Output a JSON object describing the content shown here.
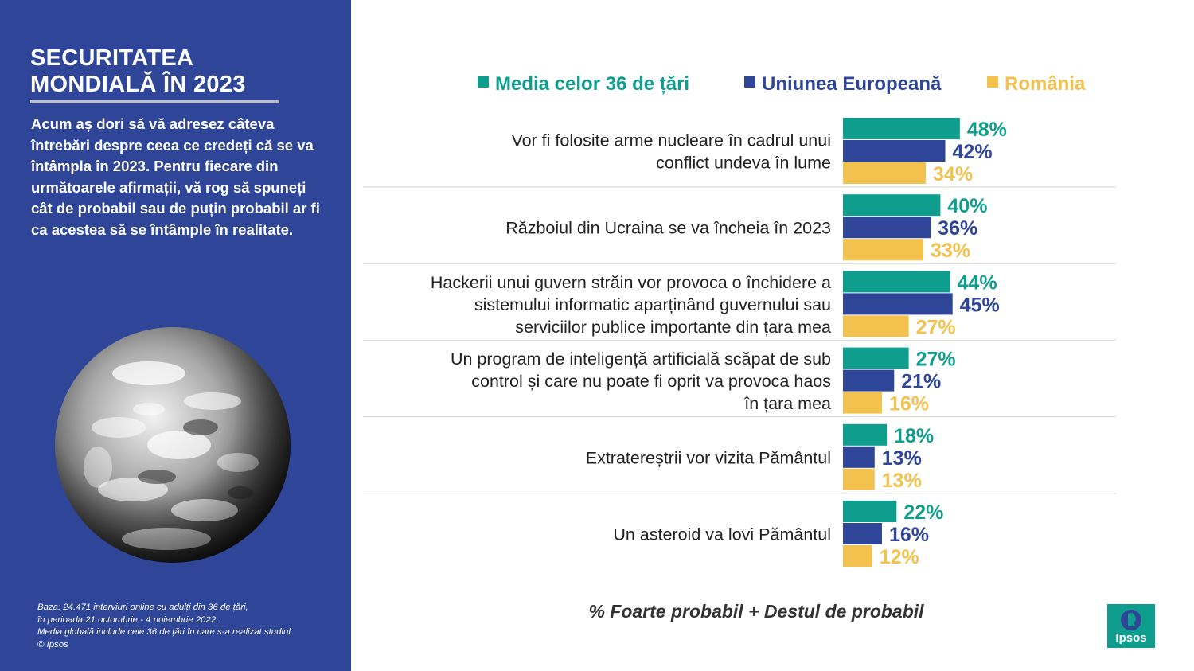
{
  "sidebar": {
    "title_line1": "SECURITATEA",
    "title_line2": "MONDIALĂ ÎN 2023",
    "intro": "Acum aș dori să vă adresez câteva întrebări despre ceea ce credeți că se va întâmpla în 2023. Pentru fiecare din următoarele afirmații, vă rog să spuneți cât de probabil sau de puțin probabil ar fi ca acestea să se întâmple în realitate.",
    "footnote": [
      "Baza: 24.471 interviuri online cu adulți din 36 de țări,",
      "în perioada 21 octombrie - 4 noiembrie 2022.",
      "Media globală include cele 36 de țări în care s-a realizat studiul.",
      "© Ipsos"
    ]
  },
  "caption": "% Foarte probabil + Destul de probabil",
  "logo": {
    "text": "Ipsos",
    "color": "#0f9e8e"
  },
  "chart_data": {
    "type": "bar",
    "orientation": "horizontal",
    "legend_position": "top",
    "grid": false,
    "xlim": [
      0,
      100
    ],
    "unit": "%",
    "categories": [
      [
        "Vor fi folosite arme nucleare în cadrul unui",
        "conflict undeva în lume"
      ],
      [
        "Războiul din Ucraina se va încheia în 2023"
      ],
      [
        "Hackerii unui guvern străin vor provoca o închidere a",
        "sistemului informatic aparținând guvernului sau",
        "serviciilor publice importante din țara mea"
      ],
      [
        "Un program de inteligență artificială scăpat de sub",
        "control și care nu poate fi oprit va provoca haos",
        "în țara mea"
      ],
      [
        "Extratereștrii vor vizita Pământul"
      ],
      [
        "Un asteroid va lovi Pământul"
      ]
    ],
    "series": [
      {
        "name": "Media celor 36 de țări",
        "color": "#0f9e8e",
        "values": [
          48,
          40,
          44,
          27,
          18,
          22
        ]
      },
      {
        "name": "Uniunea Europeană",
        "color": "#2e4598",
        "values": [
          42,
          36,
          45,
          21,
          13,
          16
        ]
      },
      {
        "name": "România",
        "color": "#f2c14e",
        "values": [
          34,
          33,
          27,
          16,
          13,
          12
        ]
      }
    ]
  }
}
